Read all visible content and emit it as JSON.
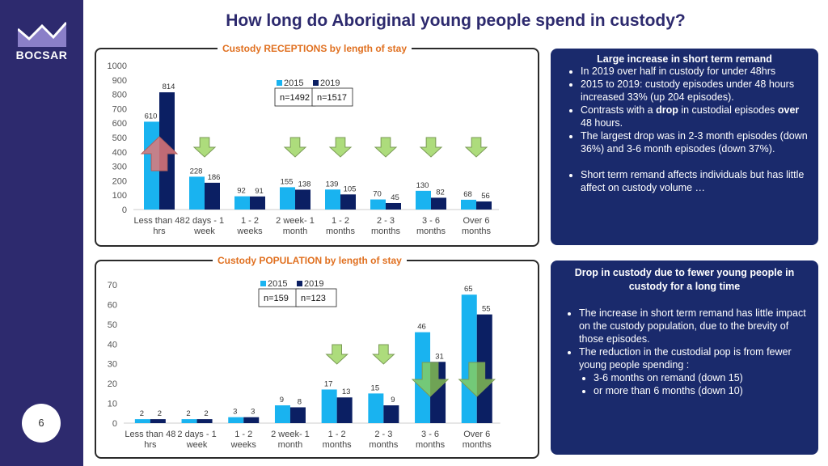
{
  "brand": {
    "name": "BOCSAR"
  },
  "title": "How long do Aboriginal young people spend in custody?",
  "page_number": "6",
  "colors": {
    "navy": "#2d2a6e",
    "series_2015": "#19b3f0",
    "series_2019": "#0b1f63",
    "accent": "#e07020",
    "info_bg": "#1a2a6c"
  },
  "chart_data": [
    {
      "type": "bar",
      "title": "Custody RECEPTIONS by length of stay",
      "categories": [
        "Less than 48 hrs",
        "2 days - 1 week",
        "1 - 2 weeks",
        "2 week- 1 month",
        "1 - 2 months",
        "2 - 3 months",
        "3 - 6 months",
        "Over 6 months"
      ],
      "series": [
        {
          "name": "2015",
          "n": "n=1492",
          "values": [
            610,
            228,
            92,
            155,
            139,
            70,
            130,
            68
          ]
        },
        {
          "name": "2019",
          "n": "n=1517",
          "values": [
            814,
            186,
            91,
            138,
            105,
            45,
            82,
            56
          ]
        }
      ],
      "ylim": [
        0,
        1000
      ],
      "yticks": [
        0,
        100,
        200,
        300,
        400,
        500,
        600,
        700,
        800,
        900,
        1000
      ],
      "arrows": [
        "up",
        "down",
        "none",
        "down",
        "down",
        "down",
        "down",
        "down"
      ]
    },
    {
      "type": "bar",
      "title": "Custody POPULATION by length of stay",
      "categories": [
        "Less than 48 hrs",
        "2 days - 1 week",
        "1 - 2 weeks",
        "2 week- 1 month",
        "1 - 2 months",
        "2 - 3 months",
        "3 - 6 months",
        "Over 6 months"
      ],
      "series": [
        {
          "name": "2015",
          "n": "n=159",
          "values": [
            2,
            2,
            3,
            9,
            17,
            15,
            46,
            65
          ]
        },
        {
          "name": "2019",
          "n": "n=123",
          "values": [
            2,
            2,
            3,
            8,
            13,
            9,
            31,
            55
          ]
        }
      ],
      "ylim": [
        0,
        70
      ],
      "yticks": [
        0,
        10,
        20,
        30,
        40,
        50,
        60,
        70
      ],
      "arrows": [
        "none",
        "none",
        "none",
        "none",
        "down",
        "down",
        "down-large",
        "down-large"
      ]
    }
  ],
  "info_top": {
    "heading": "Large increase in short term remand",
    "bullets": [
      {
        "parts": [
          {
            "t": "In 2019 over half in custody for under 48hrs"
          }
        ]
      },
      {
        "parts": [
          {
            "t": "2015 to 2019: custody episodes under 48 hours increased 33% (up 204 episodes)."
          }
        ]
      },
      {
        "parts": [
          {
            "t": "Contrasts with a "
          },
          {
            "t": "drop",
            "b": true
          },
          {
            "t": " in custodial episodes "
          },
          {
            "t": "over",
            "b": true
          },
          {
            "t": " 48 hours."
          }
        ]
      },
      {
        "parts": [
          {
            "t": "The largest drop was in 2-3 month episodes (down 36%) and 3-6 month episodes (down 37%)."
          }
        ]
      }
    ],
    "bullets2": [
      {
        "parts": [
          {
            "t": "Short term remand affects individuals but has little affect on custody volume …"
          }
        ]
      }
    ]
  },
  "info_bottom": {
    "heading": "Drop in custody due to fewer young people in custody for a long time",
    "bullets": [
      {
        "parts": [
          {
            "t": "The increase in short term remand has little impact on the custody population, due to the brevity of those episodes."
          }
        ]
      },
      {
        "parts": [
          {
            "t": "The reduction in the custodial pop is from fewer young people spending :"
          }
        ]
      }
    ],
    "sub_bullets": [
      {
        "parts": [
          {
            "t": "3-6 months on remand (down 15)"
          }
        ]
      },
      {
        "parts": [
          {
            "t": "or more than 6 months (down 10)"
          }
        ]
      }
    ]
  }
}
